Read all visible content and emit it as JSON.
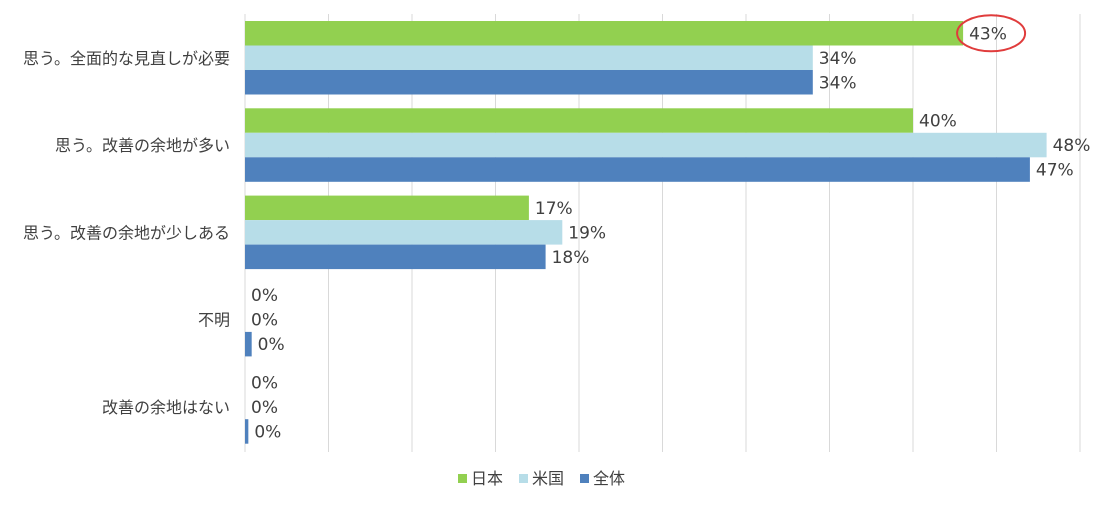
{
  "chart_data": {
    "type": "bar",
    "orientation": "horizontal",
    "categories": [
      "思う。全面的な見直しが必要",
      "思う。改善の余地が多い",
      "思う。改善の余地が少しある",
      "不明",
      "改善の余地はない"
    ],
    "series": [
      {
        "name": "日本",
        "color": "#92d050",
        "values": [
          43,
          40,
          17,
          0,
          0
        ],
        "labels": [
          "43%",
          "40%",
          "17%",
          "0%",
          "0%"
        ]
      },
      {
        "name": "米国",
        "color": "#b7dde8",
        "values": [
          34,
          48,
          19,
          0,
          0
        ],
        "labels": [
          "34%",
          "48%",
          "19%",
          "0%",
          "0%"
        ]
      },
      {
        "name": "全体",
        "color": "#4f81bd",
        "values": [
          34,
          47,
          18,
          0.4,
          0.2
        ],
        "labels": [
          "34%",
          "47%",
          "18%",
          "0%",
          "0%"
        ]
      }
    ],
    "xlim": [
      0,
      50
    ],
    "grid": true,
    "legend_position": "bottom",
    "annotation": {
      "type": "ellipse",
      "target": "日本 / 思う。全面的な見直しが必要",
      "color": "#e03c3c"
    }
  }
}
